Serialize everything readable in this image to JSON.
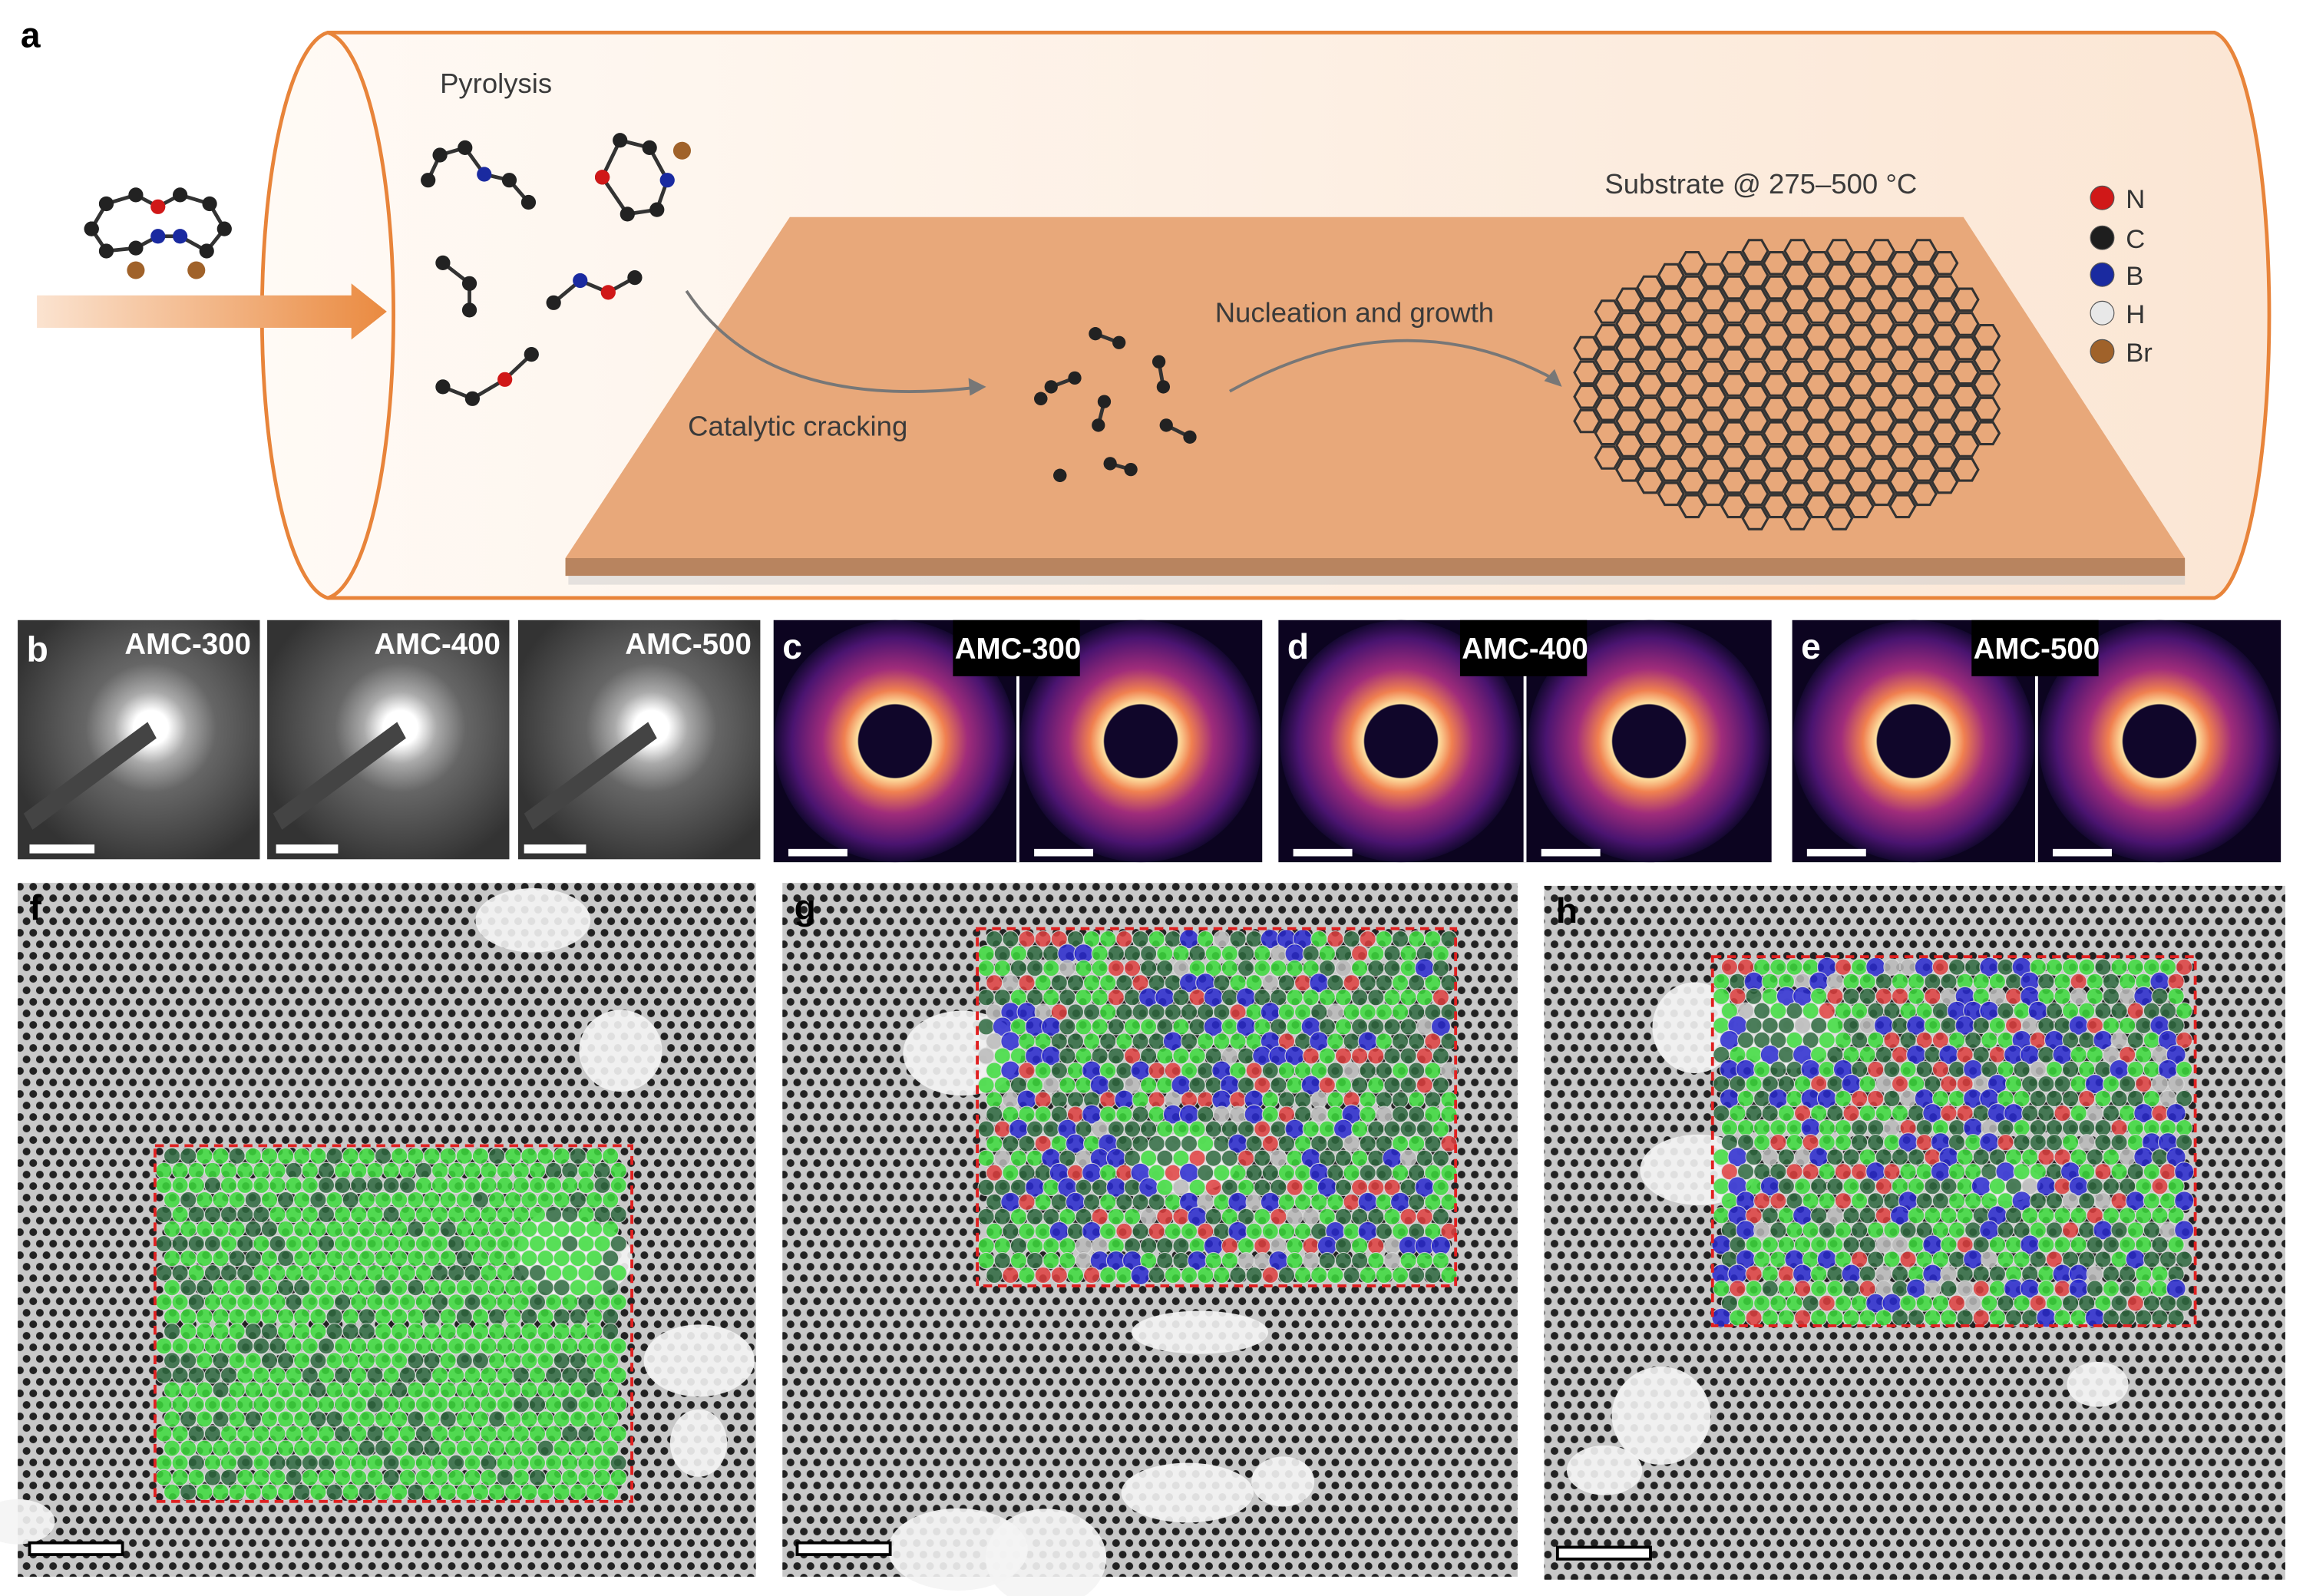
{
  "panel_a": {
    "label": "a",
    "pyrolysis": "Pyrolysis",
    "substrate": "Substrate @ 275–500 °C",
    "nucleation": "Nucleation and growth",
    "cracking": "Catalytic cracking",
    "legend": [
      {
        "symbol": "N",
        "color": "#d01818"
      },
      {
        "symbol": "C",
        "color": "#1e1e1e"
      },
      {
        "symbol": "B",
        "color": "#1a2aa0"
      },
      {
        "symbol": "H",
        "color": "#e8e8e8"
      },
      {
        "symbol": "Br",
        "color": "#a0622a"
      }
    ],
    "colors": {
      "tube": "#e8843a",
      "substrate_top": "#e8a87a",
      "substrate_side": "#b8845f",
      "arrow": "#ea8a40"
    }
  },
  "panel_b": {
    "label": "b",
    "images": [
      "AMC-300",
      "AMC-400",
      "AMC-500"
    ]
  },
  "panel_c": {
    "label": "c",
    "title": "AMC-300"
  },
  "panel_d": {
    "label": "d",
    "title": "AMC-400"
  },
  "panel_e": {
    "label": "e",
    "title": "AMC-500"
  },
  "panel_f": {
    "label": "f"
  },
  "panel_g": {
    "label": "g"
  },
  "panel_h": {
    "label": "h"
  },
  "ring_colors": {
    "hexagon_light": "#3ddc3d",
    "hexagon_dark": "#2f6a40",
    "pentagon": "#e04040",
    "heptagon_octagon": "#2a2ad0",
    "boundary": "#e02020"
  }
}
